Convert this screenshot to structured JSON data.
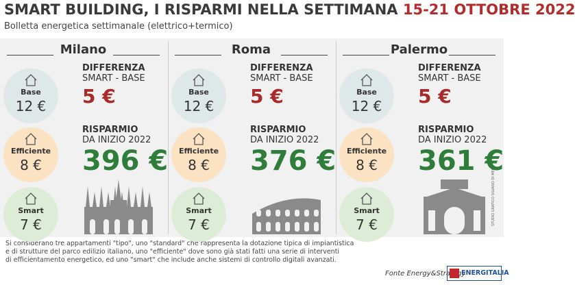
{
  "header": {
    "title": "SMART BUILDING, I RISPARMI NELLA SETTIMANA",
    "dates": "15-21 OTTOBRE 2022",
    "subtitle": "Bolletta energetica settimanale (elettrico+termico)"
  },
  "cities": [
    {
      "name": "Milano",
      "circles": [
        {
          "label": "Base",
          "value": "12 €"
        },
        {
          "label": "Efficiente",
          "value": "8 €"
        },
        {
          "label": "Smart",
          "value": "7 €"
        }
      ],
      "difference": {
        "heading": "DIFFERENZA",
        "subheading": "SMART - BASE",
        "value": "5 €"
      },
      "savings": {
        "heading": "RISPARMIO",
        "subheading": "DA INIZIO 2022",
        "value": "396 €"
      }
    },
    {
      "name": "Roma",
      "circles": [
        {
          "label": "Base",
          "value": "12 €"
        },
        {
          "label": "Efficiente",
          "value": "8 €"
        },
        {
          "label": "Smart",
          "value": "7 €"
        }
      ],
      "difference": {
        "heading": "DIFFERENZA",
        "subheading": "SMART - BASE",
        "value": "5 €"
      },
      "savings": {
        "heading": "RISPARMIO",
        "subheading": "DA INIZIO 2022",
        "value": "376 €"
      }
    },
    {
      "name": "Palermo",
      "circles": [
        {
          "label": "Base",
          "value": "12 €"
        },
        {
          "label": "Efficiente",
          "value": "8 €"
        },
        {
          "label": "Smart",
          "value": "7 €"
        }
      ],
      "difference": {
        "heading": "DIFFERENZA",
        "subheading": "SMART - BASE",
        "value": "5 €"
      },
      "savings": {
        "heading": "RISPARMIO",
        "subheading": "DA INIZIO 2022",
        "value": "361 €"
      }
    }
  ],
  "credit": "STUDIO GRAFICO SILVANO DI MEO",
  "footer": {
    "note": [
      "Si considerano tre appartamenti \"tipo\", uno \"standard\" che rappresenta la dotazione tipica di impiantistica",
      "e di strutture del parco edilizio italiano, uno \"efficiente\" dove sono già stati fatti una serie di interventi",
      "di efficientamento energetico, ed uno \"smart\" che include anche sistemi di controllo digitali avanzati."
    ],
    "source": "Fonte Energy&Strategy",
    "brand": "ENERGITALIA"
  }
}
